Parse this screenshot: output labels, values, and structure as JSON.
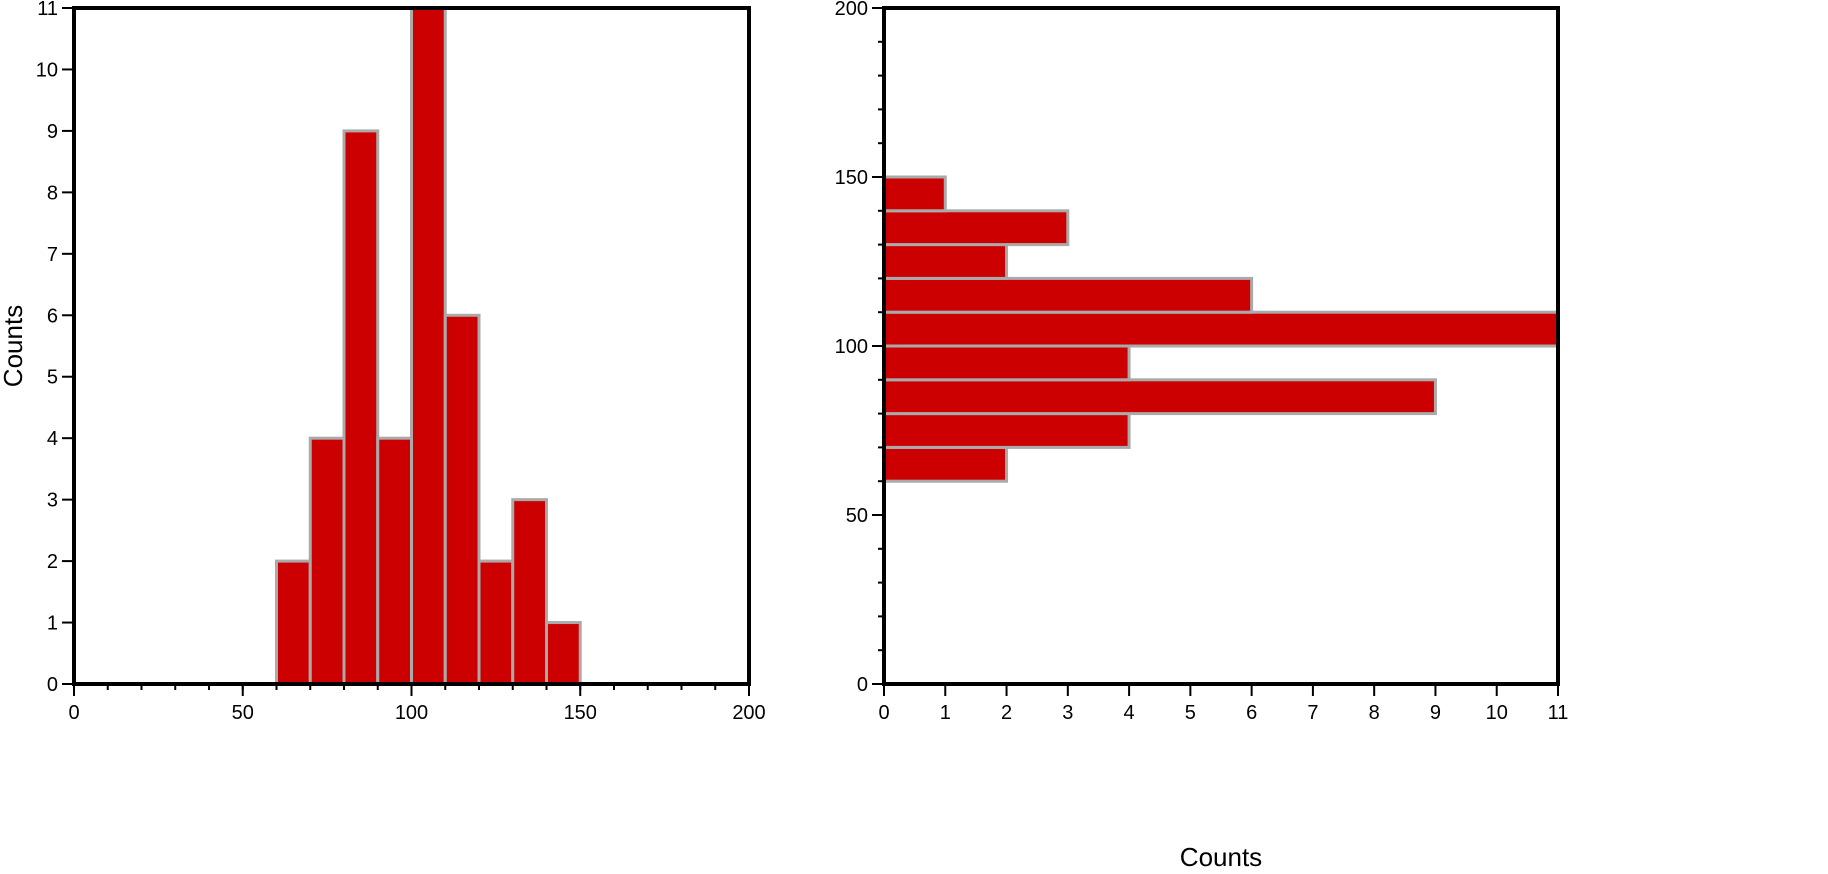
{
  "chart_data": [
    {
      "type": "bar",
      "orientation": "vertical",
      "bin_edges": [
        60,
        70,
        80,
        90,
        100,
        110,
        120,
        130,
        140,
        150
      ],
      "values": [
        2,
        4,
        9,
        4,
        11,
        6,
        2,
        3,
        1
      ],
      "xlim": [
        0,
        200
      ],
      "ylim": [
        0,
        11
      ],
      "xticks": [
        "0",
        "50",
        "100",
        "150",
        "200"
      ],
      "yticks": [
        "0",
        "1",
        "2",
        "3",
        "4",
        "5",
        "6",
        "7",
        "8",
        "9",
        "10",
        "11"
      ],
      "xlabel": "",
      "ylabel": "Counts",
      "grid": false,
      "bar_color": "#cc0000",
      "edge_color": "#aaaaaa"
    },
    {
      "type": "bar",
      "orientation": "horizontal",
      "bin_edges": [
        60,
        70,
        80,
        90,
        100,
        110,
        120,
        130,
        140,
        150
      ],
      "values": [
        2,
        4,
        9,
        4,
        11,
        6,
        2,
        3,
        1
      ],
      "xlim": [
        0,
        11
      ],
      "ylim": [
        0,
        200
      ],
      "xticks": [
        "0",
        "1",
        "2",
        "3",
        "4",
        "5",
        "6",
        "7",
        "8",
        "9",
        "10",
        "11"
      ],
      "yticks": [
        "0",
        "50",
        "100",
        "150",
        "200"
      ],
      "xlabel": "Counts",
      "ylabel": "",
      "grid": false,
      "bar_color": "#cc0000",
      "edge_color": "#aaaaaa"
    }
  ]
}
